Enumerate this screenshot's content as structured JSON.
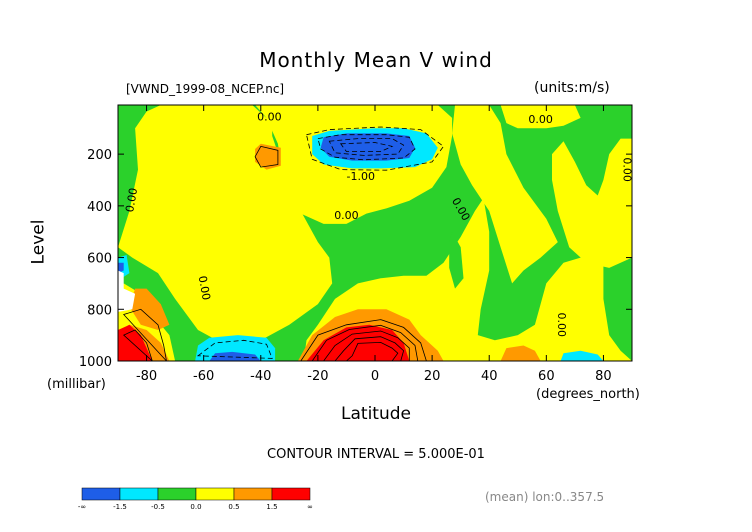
{
  "header": {
    "title": "Monthly Mean V wind",
    "file_label": "[VWND_1999-08_NCEP.nc]",
    "units_label": "(units:m/s)"
  },
  "footer": {
    "contour_note": "CONTOUR INTERVAL = 5.000E-01",
    "mean_note": "(mean) lon:0..357.5"
  },
  "chart_data": {
    "type": "heatmap",
    "title": "Monthly Mean V wind",
    "xlabel": "Latitude",
    "x_unit": "(degrees_north)",
    "ylabel": "Level",
    "y_unit": "(millibar)",
    "xlim": [
      -90,
      90
    ],
    "ylim": [
      1000,
      10
    ],
    "y_reversed": true,
    "x_ticks": [
      -80,
      -60,
      -40,
      -20,
      0,
      20,
      40,
      60,
      80
    ],
    "y_ticks": [
      200,
      400,
      600,
      800,
      1000
    ],
    "contour_interval": 0.5,
    "contour_labels": [
      "0.00",
      "0.00",
      "0.00",
      "0.00",
      "0.00",
      "0.00",
      "0.00",
      "0.00",
      "-1.00"
    ],
    "colorbar": {
      "colors": [
        "#1e5ee8",
        "#00e8ff",
        "#2bd12b",
        "#ffff00",
        "#ff9900",
        "#ff0000"
      ],
      "labels": [
        "-∞",
        "-1.5",
        "-0.5",
        "0.0",
        "0.5",
        "1.5",
        "∞"
      ]
    },
    "features": [
      {
        "kind": "min",
        "lat": -5,
        "level": 175,
        "value": -2.0
      },
      {
        "kind": "max",
        "lat": -5,
        "level": 970,
        "value": 3.0
      },
      {
        "kind": "max",
        "lat": -85,
        "level": 950,
        "value": 2.0
      },
      {
        "kind": "min",
        "lat": -55,
        "level": 980,
        "value": -1.2
      }
    ]
  }
}
